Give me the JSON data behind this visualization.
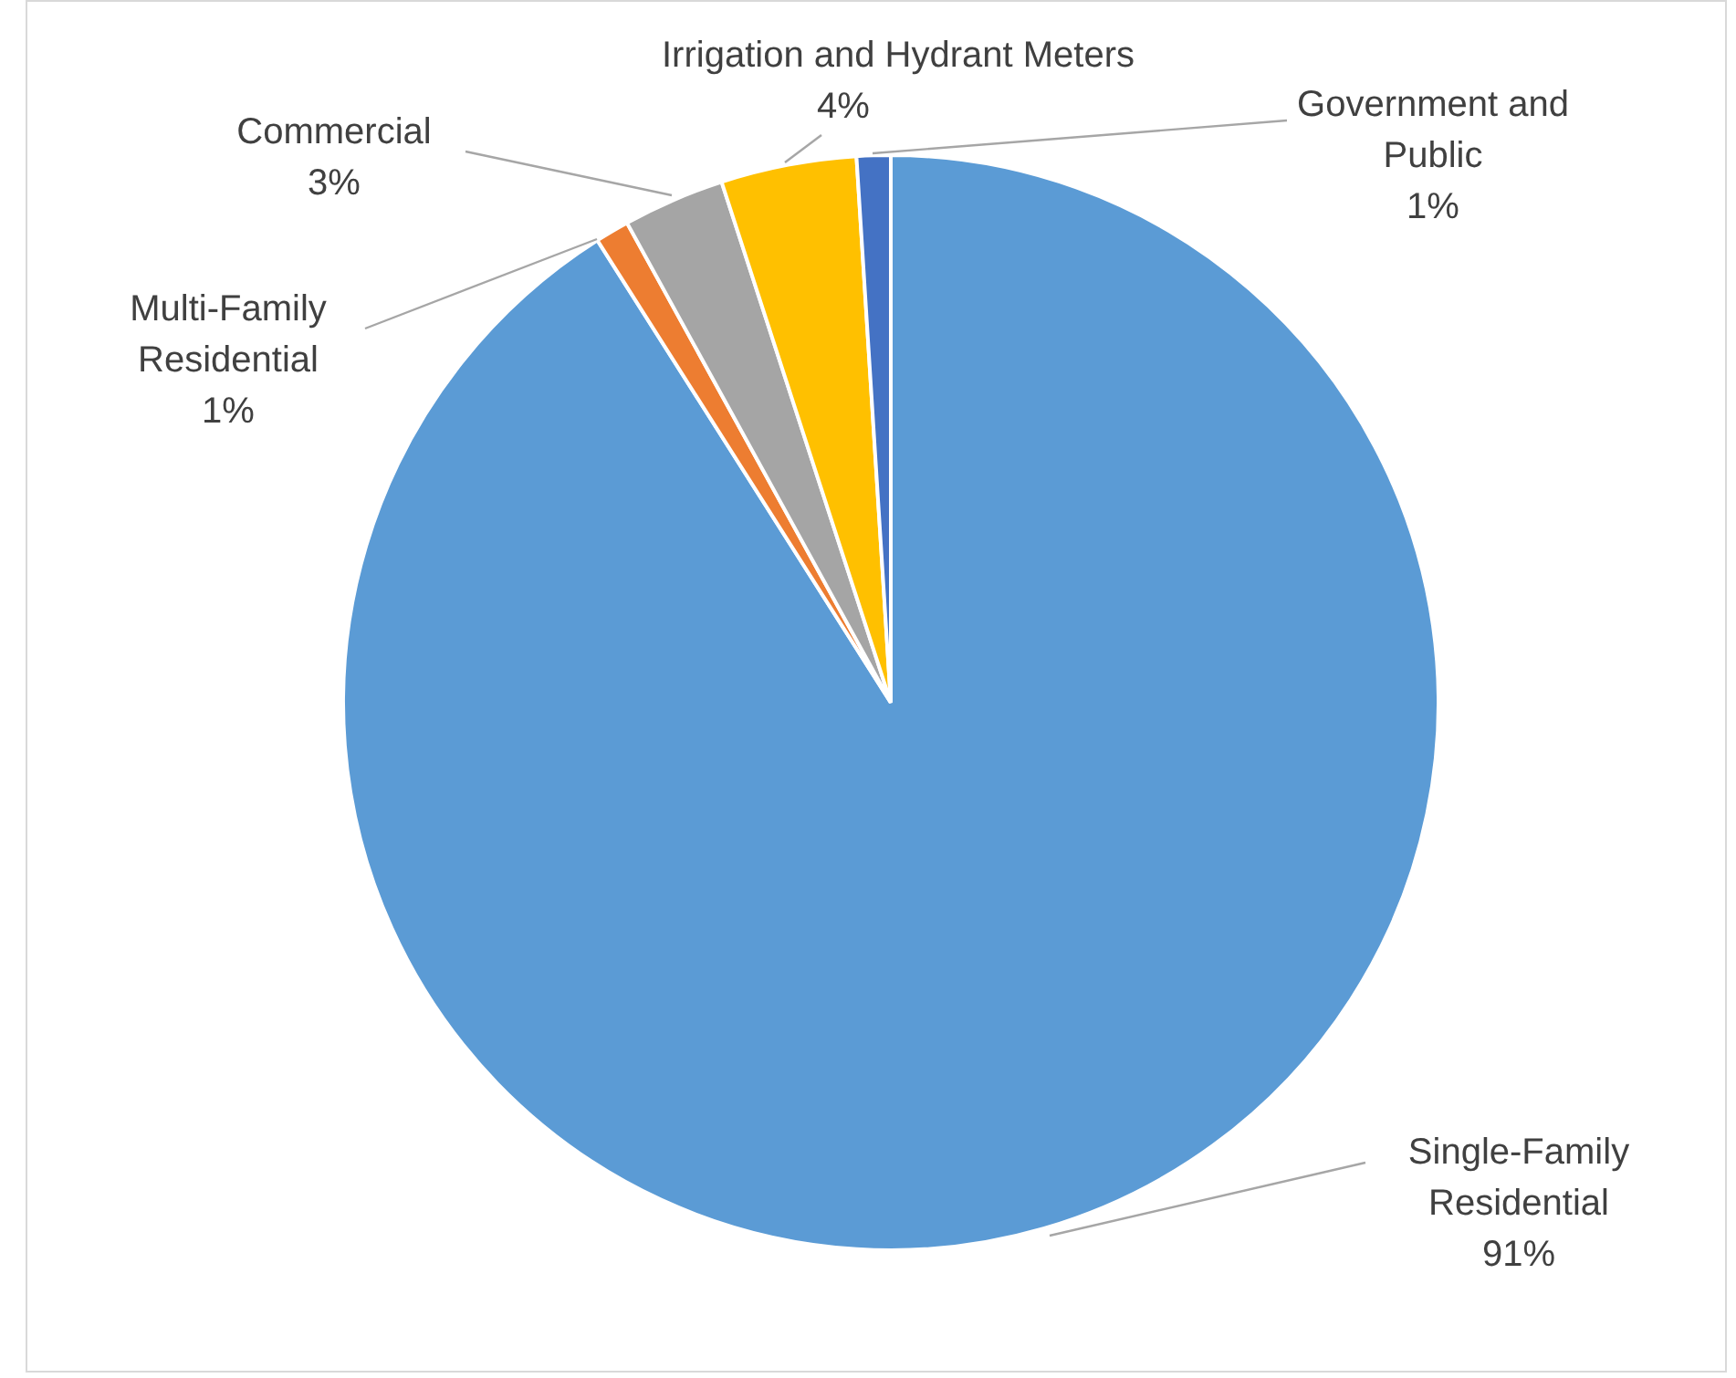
{
  "chart_data": {
    "type": "pie",
    "categories": [
      "Single-Family Residential",
      "Multi-Family Residential",
      "Commercial",
      "Irrigation and Hydrant Meters",
      "Government and Public"
    ],
    "values": [
      91,
      1,
      3,
      4,
      1
    ],
    "value_labels": [
      "91%",
      "1%",
      "3%",
      "4%",
      "1%"
    ],
    "colors": [
      "#5b9bd5",
      "#ed7d31",
      "#a5a5a5",
      "#ffc000",
      "#4472c4"
    ],
    "legend": false
  }
}
